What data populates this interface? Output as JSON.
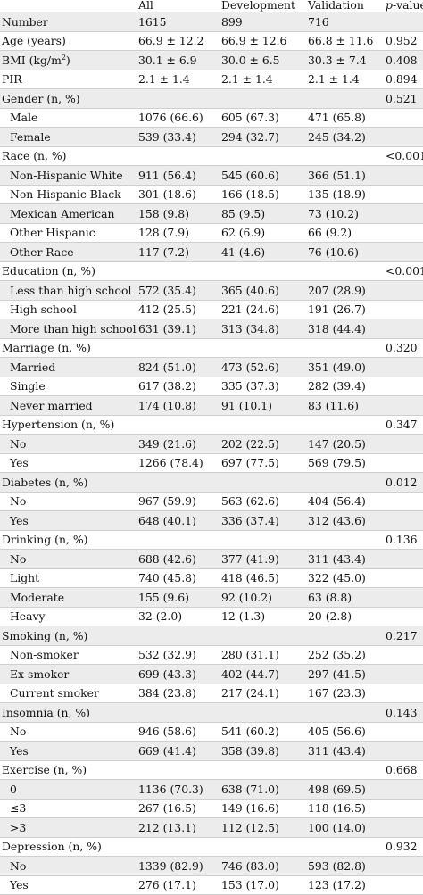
{
  "header": {
    "col_label": "",
    "col_all": "All",
    "col_dev": "Development",
    "col_val": "Validation",
    "col_p_italic": "p",
    "col_p_rest": "-value"
  },
  "rows": [
    {
      "label": "Number",
      "all": "1615",
      "dev": "899",
      "val": "716",
      "p": "",
      "indent": false
    },
    {
      "label": "Age (years)",
      "all": "66.9 ± 12.2",
      "dev": "66.9 ± 12.6",
      "val": "66.8 ± 11.6",
      "p": "0.952",
      "indent": false
    },
    {
      "label": "BMI (kg/m",
      "label_sup": "2",
      "label_after": ")",
      "all": "30.1 ± 6.9",
      "dev": "30.0 ± 6.5",
      "val": "30.3 ± 7.4",
      "p": "0.408",
      "indent": false
    },
    {
      "label": "PIR",
      "all": "2.1 ± 1.4",
      "dev": "2.1 ± 1.4",
      "val": "2.1 ± 1.4",
      "p": "0.894",
      "indent": false
    },
    {
      "label": "Gender (n, %)",
      "all": "",
      "dev": "",
      "val": "",
      "p": "0.521",
      "indent": false
    },
    {
      "label": "Male",
      "all": "1076 (66.6)",
      "dev": "605 (67.3)",
      "val": "471 (65.8)",
      "p": "",
      "indent": true
    },
    {
      "label": "Female",
      "all": "539 (33.4)",
      "dev": "294 (32.7)",
      "val": "245 (34.2)",
      "p": "",
      "indent": true
    },
    {
      "label": "Race (n, %)",
      "all": "",
      "dev": "",
      "val": "",
      "p": "<0.001",
      "indent": false
    },
    {
      "label": "Non-Hispanic White",
      "all": "911 (56.4)",
      "dev": "545 (60.6)",
      "val": "366 (51.1)",
      "p": "",
      "indent": true
    },
    {
      "label": "Non-Hispanic Black",
      "all": "301 (18.6)",
      "dev": "166 (18.5)",
      "val": "135 (18.9)",
      "p": "",
      "indent": true
    },
    {
      "label": "Mexican American",
      "all": "158 (9.8)",
      "dev": "85 (9.5)",
      "val": "73 (10.2)",
      "p": "",
      "indent": true
    },
    {
      "label": "Other Hispanic",
      "all": "128 (7.9)",
      "dev": "62 (6.9)",
      "val": "66 (9.2)",
      "p": "",
      "indent": true
    },
    {
      "label": "Other Race",
      "all": "117 (7.2)",
      "dev": "41 (4.6)",
      "val": "76 (10.6)",
      "p": "",
      "indent": true
    },
    {
      "label": "Education (n, %)",
      "all": "",
      "dev": "",
      "val": "",
      "p": "<0.001",
      "indent": false
    },
    {
      "label": "Less than high school",
      "all": "572 (35.4)",
      "dev": "365 (40.6)",
      "val": "207 (28.9)",
      "p": "",
      "indent": true
    },
    {
      "label": "High school",
      "all": "412 (25.5)",
      "dev": "221 (24.6)",
      "val": "191 (26.7)",
      "p": "",
      "indent": true
    },
    {
      "label": "More than high school",
      "all": "631 (39.1)",
      "dev": "313 (34.8)",
      "val": "318 (44.4)",
      "p": "",
      "indent": true
    },
    {
      "label": "Marriage (n, %)",
      "all": "",
      "dev": "",
      "val": "",
      "p": "0.320",
      "indent": false
    },
    {
      "label": "Married",
      "all": "824 (51.0)",
      "dev": "473 (52.6)",
      "val": "351 (49.0)",
      "p": "",
      "indent": true
    },
    {
      "label": "Single",
      "all": "617 (38.2)",
      "dev": "335 (37.3)",
      "val": "282 (39.4)",
      "p": "",
      "indent": true
    },
    {
      "label": "Never married",
      "all": "174 (10.8)",
      "dev": "91 (10.1)",
      "val": "83 (11.6)",
      "p": "",
      "indent": true
    },
    {
      "label": "Hypertension (n, %)",
      "all": "",
      "dev": "",
      "val": "",
      "p": "0.347",
      "indent": false
    },
    {
      "label": "No",
      "all": "349 (21.6)",
      "dev": "202 (22.5)",
      "val": "147 (20.5)",
      "p": "",
      "indent": true
    },
    {
      "label": "Yes",
      "all": "1266 (78.4)",
      "dev": "697 (77.5)",
      "val": "569 (79.5)",
      "p": "",
      "indent": true
    },
    {
      "label": "Diabetes (n, %)",
      "all": "",
      "dev": "",
      "val": "",
      "p": "0.012",
      "indent": false
    },
    {
      "label": "No",
      "all": "967 (59.9)",
      "dev": "563 (62.6)",
      "val": "404 (56.4)",
      "p": "",
      "indent": true
    },
    {
      "label": "Yes",
      "all": "648 (40.1)",
      "dev": "336 (37.4)",
      "val": "312 (43.6)",
      "p": "",
      "indent": true
    },
    {
      "label": "Drinking (n, %)",
      "all": "",
      "dev": "",
      "val": "",
      "p": "0.136",
      "indent": false
    },
    {
      "label": "No",
      "all": "688 (42.6)",
      "dev": "377 (41.9)",
      "val": "311 (43.4)",
      "p": "",
      "indent": true
    },
    {
      "label": "Light",
      "all": "740 (45.8)",
      "dev": "418 (46.5)",
      "val": "322 (45.0)",
      "p": "",
      "indent": true
    },
    {
      "label": "Moderate",
      "all": "155 (9.6)",
      "dev": "92 (10.2)",
      "val": "63 (8.8)",
      "p": "",
      "indent": true
    },
    {
      "label": "Heavy",
      "all": "32 (2.0)",
      "dev": "12 (1.3)",
      "val": "20 (2.8)",
      "p": "",
      "indent": true
    },
    {
      "label": "Smoking (n, %)",
      "all": "",
      "dev": "",
      "val": "",
      "p": "0.217",
      "indent": false
    },
    {
      "label": "Non-smoker",
      "all": "532 (32.9)",
      "dev": "280 (31.1)",
      "val": "252 (35.2)",
      "p": "",
      "indent": true
    },
    {
      "label": "Ex-smoker",
      "all": "699 (43.3)",
      "dev": "402 (44.7)",
      "val": "297 (41.5)",
      "p": "",
      "indent": true
    },
    {
      "label": "Current smoker",
      "all": "384 (23.8)",
      "dev": "217 (24.1)",
      "val": "167 (23.3)",
      "p": "",
      "indent": true
    },
    {
      "label": "Insomnia (n, %)",
      "all": "",
      "dev": "",
      "val": "",
      "p": "0.143",
      "indent": false
    },
    {
      "label": "No",
      "all": "946 (58.6)",
      "dev": "541 (60.2)",
      "val": "405 (56.6)",
      "p": "",
      "indent": true
    },
    {
      "label": "Yes",
      "all": "669 (41.4)",
      "dev": "358 (39.8)",
      "val": "311 (43.4)",
      "p": "",
      "indent": true
    },
    {
      "label": "Exercise (n, %)",
      "all": "",
      "dev": "",
      "val": "",
      "p": "0.668",
      "indent": false
    },
    {
      "label": "0",
      "all": "1136 (70.3)",
      "dev": "638 (71.0)",
      "val": "498 (69.5)",
      "p": "",
      "indent": true
    },
    {
      "label": "≤3",
      "all": "267 (16.5)",
      "dev": "149 (16.6)",
      "val": "118 (16.5)",
      "p": "",
      "indent": true
    },
    {
      "label": ">3",
      "all": "212 (13.1)",
      "dev": "112 (12.5)",
      "val": "100 (14.0)",
      "p": "",
      "indent": true
    },
    {
      "label": "Depression (n, %)",
      "all": "",
      "dev": "",
      "val": "",
      "p": "0.932",
      "indent": false
    },
    {
      "label": "No",
      "all": "1339 (82.9)",
      "dev": "746 (83.0)",
      "val": "593 (82.8)",
      "p": "",
      "indent": true
    },
    {
      "label": "Yes",
      "all": "276 (17.1)",
      "dev": "153 (17.0)",
      "val": "123 (17.2)",
      "p": "",
      "indent": true
    }
  ]
}
